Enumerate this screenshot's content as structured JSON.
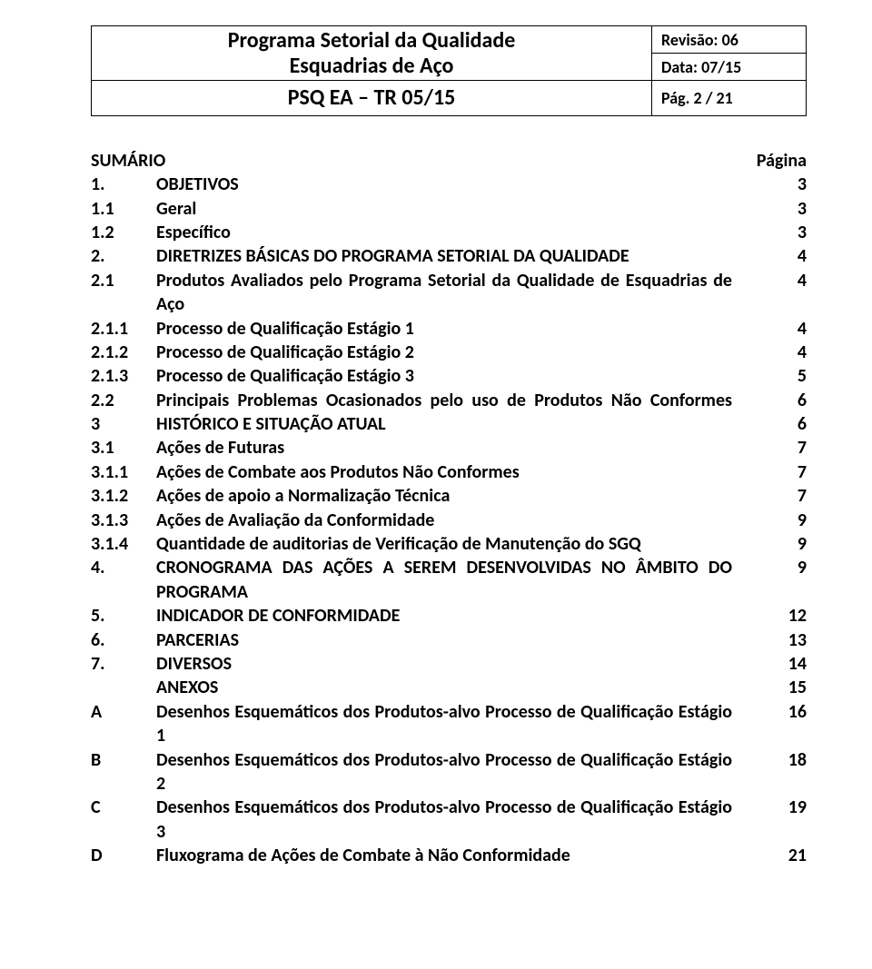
{
  "header": {
    "title_line1": "Programa Setorial da Qualidade",
    "title_line2": "Esquadrias de Aço",
    "doc_code": "PSQ EA – TR 05/15",
    "revisao_label": "Revisão:",
    "revisao_value": "06",
    "data_label": "Data:",
    "data_value": "07/15",
    "pag_label": "Pág.",
    "pag_value": "2 / 21"
  },
  "toc_header": {
    "left": "SUMÁRIO",
    "right": "Página"
  },
  "toc": [
    {
      "n": "1.",
      "t": "OBJETIVOS",
      "p": "3"
    },
    {
      "n": "1.1",
      "t": "Geral",
      "p": "3"
    },
    {
      "n": "1.2",
      "t": "Específico",
      "p": "3"
    },
    {
      "n": "2.",
      "t": "DIRETRIZES BÁSICAS DO PROGRAMA SETORIAL DA QUALIDADE",
      "p": "4"
    },
    {
      "n": "2.1",
      "t": "Produtos Avaliados pelo Programa Setorial da Qualidade de Esquadrias de Aço",
      "p": "4",
      "justify": true
    },
    {
      "n": "2.1.1",
      "t": "Processo de Qualificação Estágio 1",
      "p": "4"
    },
    {
      "n": "2.1.2",
      "t": "Processo de Qualificação Estágio 2",
      "p": "4"
    },
    {
      "n": "2.1.3",
      "t": "Processo de Qualificação Estágio 3",
      "p": "5"
    },
    {
      "n": "2.2",
      "t": "Principais Problemas Ocasionados pelo uso de Produtos Não Conformes",
      "p": "6",
      "justify": true
    },
    {
      "n": "3",
      "t": "HISTÓRICO E SITUAÇÃO ATUAL",
      "p": "6"
    },
    {
      "n": "3.1",
      "t": "Ações de Futuras",
      "p": "7"
    },
    {
      "n": "3.1.1",
      "t": "Ações de Combate aos Produtos Não Conformes",
      "p": "7"
    },
    {
      "n": "3.1.2",
      "t": "Ações de apoio a Normalização Técnica",
      "p": "7"
    },
    {
      "n": "3.1.3",
      "t": "Ações de Avaliação da Conformidade",
      "p": "9"
    },
    {
      "n": "3.1.4",
      "t": "Quantidade de auditorias de Verificação de Manutenção do SGQ",
      "p": "9"
    },
    {
      "n": "4.",
      "t": "CRONOGRAMA DAS AÇÕES A SEREM DESENVOLVIDAS NO ÂMBITO DO PROGRAMA",
      "p": "9",
      "justify": true
    },
    {
      "n": "5.",
      "t": "INDICADOR DE CONFORMIDADE",
      "p": "12"
    },
    {
      "n": "6.",
      "t": "PARCERIAS",
      "p": "13"
    },
    {
      "n": "7.",
      "t": "DIVERSOS",
      "p": "14"
    },
    {
      "n": "",
      "t": "ANEXOS",
      "p": "15"
    },
    {
      "n": "A",
      "t": "Desenhos Esquemáticos dos Produtos-alvo Processo de Qualificação Estágio 1",
      "p": "16",
      "justify": true
    },
    {
      "n": "B",
      "t": "Desenhos Esquemáticos dos Produtos-alvo Processo de Qualificação Estágio 2",
      "p": "18",
      "justify": true
    },
    {
      "n": "C",
      "t": "Desenhos Esquemáticos dos Produtos-alvo Processo de Qualificação Estágio 3",
      "p": "19",
      "justify": true
    },
    {
      "n": "D",
      "t": "Fluxograma de Ações de Combate à Não Conformidade",
      "p": "21"
    }
  ]
}
